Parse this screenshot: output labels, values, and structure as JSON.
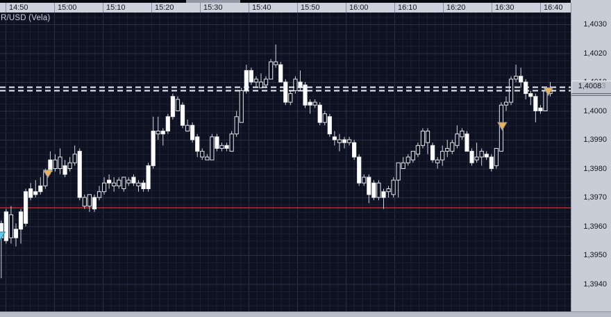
{
  "colors": {
    "background": "#0d1120",
    "grid_minor": "#1b2134",
    "grid_major": "#293147",
    "candle": "#ffffff",
    "wick": "#d6d8e0",
    "red_line": "#c23030",
    "dashed_line": "#e9effc",
    "marker_orange": "#edb257",
    "marker_cyan": "#62c8e8",
    "axis_bg": "#cdd1db"
  },
  "symbol_label": "R/USD (Vela)",
  "time_axis": {
    "labels": [
      "14:50",
      "15:00",
      "15:10",
      "15:20",
      "15:30",
      "15:40",
      "15:50",
      "16:00",
      "16:10",
      "16:20",
      "16:30",
      "16:40"
    ]
  },
  "price_axis": {
    "labels": [
      "1,4030",
      "1,4020",
      "1,4010",
      "1,4000",
      "1,3990",
      "1,3980",
      "1,3970",
      "1,3960",
      "1,3950",
      "1,3940"
    ],
    "values": [
      1.403,
      1.402,
      1.401,
      1.4,
      1.399,
      1.398,
      1.397,
      1.396,
      1.395,
      1.394
    ],
    "current_price_main": "1,4008",
    "current_price_dim": "3"
  },
  "chart_data": {
    "type": "candlestick",
    "title": "R/USD (Vela)",
    "x_labels": [
      "14:50",
      "15:00",
      "15:10",
      "15:20",
      "15:30",
      "15:40",
      "15:50",
      "16:00",
      "16:10",
      "16:20",
      "16:30",
      "16:40"
    ],
    "y_range": [
      1.3931,
      1.4034
    ],
    "grid": true,
    "levels": {
      "red_line": 1.39664,
      "ask_dashed": 1.40082,
      "bid_dashed": 1.4007
    },
    "current_price": 1.40083,
    "markers": [
      {
        "shape": "triangle-down",
        "color": "#edb257",
        "index": 9.5,
        "price": 1.39795,
        "name": "signal-marker"
      },
      {
        "shape": "triangle-down",
        "color": "#edb257",
        "index": 102.2,
        "price": 1.3996,
        "name": "signal-marker"
      },
      {
        "shape": "triangle-down",
        "color": "#edb257",
        "index": 111.6,
        "price": 1.4008,
        "name": "signal-marker"
      },
      {
        "shape": "triangle-down",
        "color": "#62c8e8",
        "index": -0.15,
        "price": 1.3958,
        "name": "signal-marker-cyan"
      }
    ],
    "candles": [
      [
        1.3961,
        1.3962,
        1.3942,
        1.3956,
        "s"
      ],
      [
        1.3965,
        1.3966,
        1.3954,
        1.3955,
        "s"
      ],
      [
        1.3956,
        1.3967,
        1.3954,
        1.3964,
        "h"
      ],
      [
        1.3959,
        1.3961,
        1.3953,
        1.3956,
        "s"
      ],
      [
        1.3965,
        1.3966,
        1.3954,
        1.3959,
        "s"
      ],
      [
        1.3972,
        1.3973,
        1.396,
        1.3961,
        "s"
      ],
      [
        1.3973,
        1.3975,
        1.3969,
        1.397,
        "s"
      ],
      [
        1.3972,
        1.3976,
        1.397,
        1.3971,
        "s"
      ],
      [
        1.3974,
        1.3977,
        1.3971,
        1.3972,
        "s"
      ],
      [
        1.3974,
        1.398,
        1.3973,
        1.3979,
        "h"
      ],
      [
        1.3983,
        1.3986,
        1.3978,
        1.3979,
        "s"
      ],
      [
        1.398,
        1.3985,
        1.3979,
        1.3983,
        "h"
      ],
      [
        1.398,
        1.3987,
        1.3978,
        1.3984,
        "h"
      ],
      [
        1.3981,
        1.3983,
        1.3977,
        1.3978,
        "s"
      ],
      [
        1.398,
        1.3984,
        1.3979,
        1.3982,
        "h"
      ],
      [
        1.3982,
        1.3988,
        1.3981,
        1.3985,
        "h"
      ],
      [
        1.3986,
        1.3987,
        1.3969,
        1.397,
        "s"
      ],
      [
        1.3967,
        1.3971,
        1.3966,
        1.397,
        "h"
      ],
      [
        1.3967,
        1.3971,
        1.3965,
        1.3971,
        "h"
      ],
      [
        1.397,
        1.3971,
        1.3965,
        1.3966,
        "s"
      ],
      [
        1.397,
        1.3974,
        1.3969,
        1.3972,
        "h"
      ],
      [
        1.3972,
        1.3977,
        1.3971,
        1.3975,
        "h"
      ],
      [
        1.3976,
        1.3978,
        1.3973,
        1.3975,
        "s"
      ],
      [
        1.3974,
        1.3977,
        1.3972,
        1.3975,
        "h"
      ],
      [
        1.3974,
        1.3977,
        1.3973,
        1.3976,
        "h"
      ],
      [
        1.3973,
        1.3977,
        1.3972,
        1.3977,
        "h"
      ],
      [
        1.3975,
        1.3977,
        1.3974,
        1.3976,
        "h"
      ],
      [
        1.3977,
        1.3978,
        1.3974,
        1.3975,
        "s"
      ],
      [
        1.3974,
        1.3976,
        1.3972,
        1.3975,
        "h"
      ],
      [
        1.3975,
        1.3976,
        1.3972,
        1.3973,
        "s"
      ],
      [
        1.3981,
        1.3982,
        1.3972,
        1.3973,
        "s"
      ],
      [
        1.3993,
        1.3998,
        1.398,
        1.3981,
        "s"
      ],
      [
        1.3992,
        1.3998,
        1.399,
        1.3993,
        "h"
      ],
      [
        1.3993,
        1.3994,
        1.3988,
        1.3992,
        "s"
      ],
      [
        1.3998,
        1.3999,
        1.3992,
        1.3993,
        "s"
      ],
      [
        1.4005,
        1.4006,
        1.3997,
        1.3998,
        "s"
      ],
      [
        1.4,
        1.4005,
        1.4,
        1.4004,
        "h"
      ],
      [
        1.4002,
        1.4003,
        1.3994,
        1.3995,
        "s"
      ],
      [
        1.3993,
        1.3997,
        1.3993,
        1.3995,
        "h"
      ],
      [
        1.3995,
        1.3996,
        1.3989,
        1.399,
        "s"
      ],
      [
        1.3991,
        1.3992,
        1.3984,
        1.3986,
        "s"
      ],
      [
        1.3984,
        1.3987,
        1.3983,
        1.3986,
        "h"
      ],
      [
        1.3983,
        1.3985,
        1.3983,
        1.3984,
        "h"
      ],
      [
        1.3983,
        1.3992,
        1.3983,
        1.3991,
        "h"
      ],
      [
        1.3991,
        1.3992,
        1.3986,
        1.3987,
        "s"
      ],
      [
        1.3987,
        1.3989,
        1.3986,
        1.3988,
        "h"
      ],
      [
        1.3988,
        1.3989,
        1.3986,
        1.3987,
        "s"
      ],
      [
        1.3986,
        1.3993,
        1.3986,
        1.3992,
        "h"
      ],
      [
        1.3992,
        1.4,
        1.3991,
        1.3998,
        "h"
      ],
      [
        1.3996,
        1.4008,
        1.3996,
        1.4007,
        "h"
      ],
      [
        1.4014,
        1.4016,
        1.4006,
        1.4007,
        "s"
      ],
      [
        1.4014,
        1.4015,
        1.4009,
        1.401,
        "s"
      ],
      [
        1.401,
        1.4012,
        1.4008,
        1.4011,
        "h"
      ],
      [
        1.4008,
        1.4013,
        1.4008,
        1.401,
        "h"
      ],
      [
        1.4009,
        1.4012,
        1.4008,
        1.4011,
        "h"
      ],
      [
        1.4011,
        1.4018,
        1.4011,
        1.4017,
        "h"
      ],
      [
        1.4016,
        1.4023,
        1.4015,
        1.4017,
        "h"
      ],
      [
        1.4016,
        1.4017,
        1.401,
        1.401,
        "s"
      ],
      [
        1.401,
        1.4011,
        1.4002,
        1.4003,
        "s"
      ],
      [
        1.4003,
        1.4007,
        1.4002,
        1.4006,
        "h"
      ],
      [
        1.4007,
        1.4012,
        1.4006,
        1.4011,
        "h"
      ],
      [
        1.401,
        1.4014,
        1.4007,
        1.4008,
        "s"
      ],
      [
        1.4009,
        1.401,
        1.4001,
        1.4002,
        "s"
      ],
      [
        1.4003,
        1.4004,
        1.3999,
        1.4002,
        "s"
      ],
      [
        1.4002,
        1.4004,
        1.4001,
        1.4003,
        "h"
      ],
      [
        1.4002,
        1.4003,
        1.3995,
        1.3996,
        "s"
      ],
      [
        1.3996,
        1.4,
        1.3995,
        1.3999,
        "h"
      ],
      [
        1.3998,
        1.3999,
        1.3991,
        1.3992,
        "s"
      ],
      [
        1.3991,
        1.3993,
        1.3988,
        1.399,
        "s"
      ],
      [
        1.3989,
        1.3992,
        1.3986,
        1.399,
        "h"
      ],
      [
        1.399,
        1.3991,
        1.3987,
        1.3989,
        "s"
      ],
      [
        1.3989,
        1.3991,
        1.3988,
        1.399,
        "h"
      ],
      [
        1.3989,
        1.399,
        1.3983,
        1.3984,
        "s"
      ],
      [
        1.3984,
        1.3985,
        1.3974,
        1.3975,
        "s"
      ],
      [
        1.3975,
        1.3978,
        1.3974,
        1.3977,
        "h"
      ],
      [
        1.3977,
        1.3978,
        1.3968,
        1.3971,
        "s"
      ],
      [
        1.3975,
        1.3976,
        1.3969,
        1.397,
        "s"
      ],
      [
        1.397,
        1.3976,
        1.3969,
        1.3975,
        "h"
      ],
      [
        1.3972,
        1.3973,
        1.3966,
        1.397,
        "s"
      ],
      [
        1.3972,
        1.3974,
        1.397,
        1.3973,
        "h"
      ],
      [
        1.3971,
        1.3977,
        1.397,
        1.3976,
        "h"
      ],
      [
        1.3976,
        1.3982,
        1.397,
        1.3982,
        "h"
      ],
      [
        1.398,
        1.3984,
        1.398,
        1.3982,
        "h"
      ],
      [
        1.3982,
        1.3985,
        1.3981,
        1.3984,
        "h"
      ],
      [
        1.3983,
        1.3986,
        1.3982,
        1.3986,
        "h"
      ],
      [
        1.3985,
        1.3989,
        1.3984,
        1.3988,
        "h"
      ],
      [
        1.3988,
        1.3994,
        1.3987,
        1.3993,
        "h"
      ],
      [
        1.3989,
        1.3994,
        1.3985,
        1.3993,
        "h"
      ],
      [
        1.3988,
        1.3989,
        1.3982,
        1.3983,
        "s"
      ],
      [
        1.3982,
        1.3984,
        1.398,
        1.3983,
        "h"
      ],
      [
        1.3983,
        1.3988,
        1.3981,
        1.3986,
        "h"
      ],
      [
        1.3986,
        1.399,
        1.3984,
        1.3987,
        "h"
      ],
      [
        1.3986,
        1.399,
        1.3985,
        1.3989,
        "h"
      ],
      [
        1.3988,
        1.3995,
        1.3987,
        1.3992,
        "h"
      ],
      [
        1.3991,
        1.3994,
        1.399,
        1.3993,
        "h"
      ],
      [
        1.3992,
        1.3993,
        1.3986,
        1.3986,
        "s"
      ],
      [
        1.3986,
        1.3987,
        1.3981,
        1.3982,
        "s"
      ],
      [
        1.3983,
        1.3989,
        1.3982,
        1.3984,
        "h"
      ],
      [
        1.3984,
        1.3987,
        1.3981,
        1.3986,
        "h"
      ],
      [
        1.3985,
        1.3986,
        1.3983,
        1.3984,
        "s"
      ],
      [
        1.3984,
        1.3985,
        1.3979,
        1.398,
        "s"
      ],
      [
        1.3981,
        1.3987,
        1.398,
        1.3987,
        "h"
      ],
      [
        1.3986,
        1.4003,
        1.3986,
        1.4002,
        "h"
      ],
      [
        1.4002,
        1.4005,
        1.4,
        1.4003,
        "h"
      ],
      [
        1.4003,
        1.4012,
        1.4002,
        1.4011,
        "h"
      ],
      [
        1.4011,
        1.4016,
        1.401,
        1.4012,
        "h"
      ],
      [
        1.4012,
        1.4015,
        1.4008,
        1.401,
        "s"
      ],
      [
        1.401,
        1.4011,
        1.4004,
        1.4006,
        "s"
      ],
      [
        1.4006,
        1.4007,
        1.4002,
        1.4005,
        "s"
      ],
      [
        1.4005,
        1.4006,
        1.3996,
        1.4,
        "s"
      ],
      [
        1.4001,
        1.4002,
        1.3999,
        1.4,
        "s"
      ],
      [
        1.4,
        1.4008,
        1.4,
        1.4007,
        "h"
      ],
      [
        1.4006,
        1.401,
        1.4005,
        1.4008,
        "h"
      ]
    ]
  }
}
